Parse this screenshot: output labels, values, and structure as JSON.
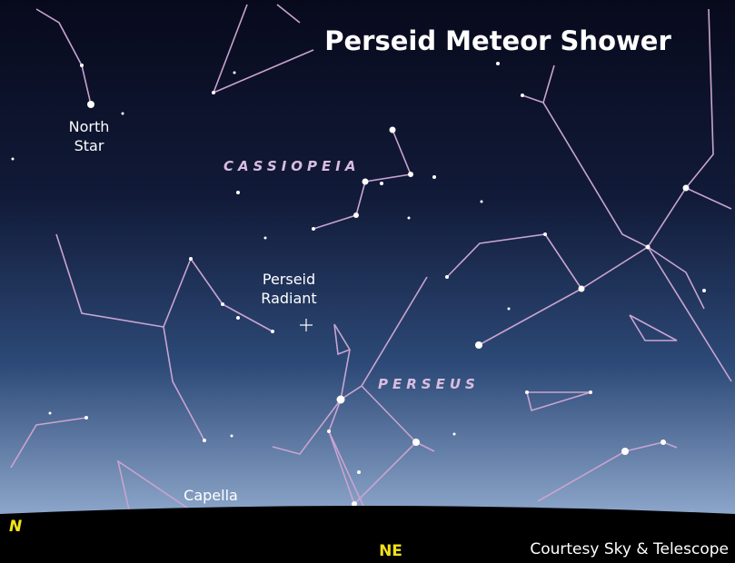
{
  "title": "Perseid Meteor Shower",
  "labels": {
    "north_star": [
      "North",
      "Star"
    ],
    "cassiopeia": "CASSIOPEIA",
    "radiant": [
      "Perseid",
      "Radiant"
    ],
    "perseus": "PERSEUS",
    "capella": "Capella"
  },
  "horizon": {
    "n": "N",
    "ne": "NE"
  },
  "credit": "Courtesy Sky & Telescope"
}
